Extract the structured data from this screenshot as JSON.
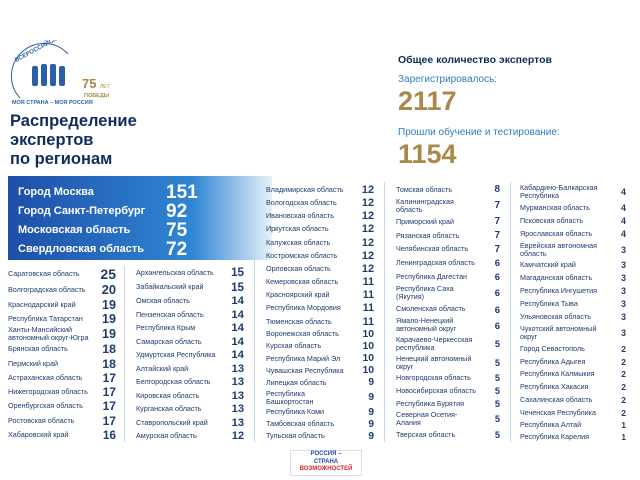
{
  "logo": {
    "arc_top": "ВСЕРОССИЙСКИЙ ПРОЕКТ",
    "arc_bottom": "МОЯ СТРАНА – МОЯ РОССИЯ",
    "years": "75",
    "years_word": "ЛЕТ",
    "victory": "ПОБЕДЫ"
  },
  "title": [
    "Распределение",
    "экспертов",
    "по регионам"
  ],
  "totals": {
    "heading": "Общее количество экспертов",
    "registered_label": "Зарегистрировалось:",
    "registered": "2117",
    "trained_label": "Прошли обучение и тестирование:",
    "trained": "1154"
  },
  "top_regions": [
    {
      "name": "Город Москва",
      "value": "151"
    },
    {
      "name": "Город Санкт-Петербург",
      "value": "92"
    },
    {
      "name": "Московская область",
      "value": "75"
    },
    {
      "name": "Свердловская область",
      "value": "72"
    }
  ],
  "columns": [
    [
      {
        "name": "Саратовская область",
        "value": "25"
      },
      {
        "name": "Волгоградская область",
        "value": "20"
      },
      {
        "name": "Краснодарский край",
        "value": "19"
      },
      {
        "name": "Республика Татарстан",
        "value": "19"
      },
      {
        "name": "Ханты-Мансийский автономный округ-Югра",
        "value": "19"
      },
      {
        "name": "Брянская область",
        "value": "18"
      },
      {
        "name": "Пермский край",
        "value": "18"
      },
      {
        "name": "Астраханская область",
        "value": "17"
      },
      {
        "name": "Нижегородская область",
        "value": "17"
      },
      {
        "name": "Оренбургская область",
        "value": "17"
      },
      {
        "name": "Ростовская область",
        "value": "17"
      },
      {
        "name": "Хабаровский край",
        "value": "16"
      }
    ],
    [
      {
        "name": "Архангельская область",
        "value": "15"
      },
      {
        "name": "Забайкальский край",
        "value": "15"
      },
      {
        "name": "Омская область",
        "value": "14"
      },
      {
        "name": "Пензенская область",
        "value": "14"
      },
      {
        "name": "Республика Крым",
        "value": "14"
      },
      {
        "name": "Самарская область",
        "value": "14"
      },
      {
        "name": "Удмуртская Республика",
        "value": "14"
      },
      {
        "name": "Алтайский край",
        "value": "13"
      },
      {
        "name": "Белгородская область",
        "value": "13"
      },
      {
        "name": "Кировская область",
        "value": "13"
      },
      {
        "name": "Курганская область",
        "value": "13"
      },
      {
        "name": "Ставропольский край",
        "value": "13"
      },
      {
        "name": "Амурская область",
        "value": "12"
      }
    ],
    [
      {
        "name": "Владимирская область",
        "value": "12"
      },
      {
        "name": "Вологодская область",
        "value": "12"
      },
      {
        "name": "Ивановская область",
        "value": "12"
      },
      {
        "name": "Иркутская область",
        "value": "12"
      },
      {
        "name": "Калужская область",
        "value": "12"
      },
      {
        "name": "Костромская область",
        "value": "12"
      },
      {
        "name": "Орловская область",
        "value": "12"
      },
      {
        "name": "Кемеровская область",
        "value": "11"
      },
      {
        "name": "Красноярский край",
        "value": "11"
      },
      {
        "name": "Республика Мордовия",
        "value": "11"
      },
      {
        "name": "Тюменская область",
        "value": "11"
      },
      {
        "name": "Воронежская область",
        "value": "10"
      },
      {
        "name": "Курская область",
        "value": "10"
      },
      {
        "name": "Республика Марий Эл",
        "value": "10"
      },
      {
        "name": "Чувашская Республика",
        "value": "10"
      },
      {
        "name": "Липецкая область",
        "value": "9"
      },
      {
        "name": "Республика Башкортостан",
        "value": "9"
      },
      {
        "name": "Республика Коми",
        "value": "9"
      },
      {
        "name": "Тамбовская область",
        "value": "9"
      },
      {
        "name": "Тульская область",
        "value": "9"
      }
    ],
    [
      {
        "name": "Томская область",
        "value": "8"
      },
      {
        "name": "Калининградская область",
        "value": "7"
      },
      {
        "name": "Приморский край",
        "value": "7"
      },
      {
        "name": "Рязанская область",
        "value": "7"
      },
      {
        "name": "Челябинская область",
        "value": "7"
      },
      {
        "name": "Ленинградская область",
        "value": "6"
      },
      {
        "name": "Республика Дагестан",
        "value": "6"
      },
      {
        "name": "Республика Саха (Якутия)",
        "value": "6"
      },
      {
        "name": "Смоленская область",
        "value": "6"
      },
      {
        "name": "Ямало-Ненецкий автономный округ",
        "value": "6"
      },
      {
        "name": "Карачаево-Черкесская республика",
        "value": "5"
      },
      {
        "name": "Ненецкий автономный округ",
        "value": "5"
      },
      {
        "name": "Новгородская область",
        "value": "5"
      },
      {
        "name": "Новосибирская область",
        "value": "5"
      },
      {
        "name": "Республика Бурятия",
        "value": "5"
      },
      {
        "name": "Северная Осетия-Алания",
        "value": "5"
      },
      {
        "name": "Тверская область",
        "value": "5"
      }
    ],
    [
      {
        "name": "Кабардино-Балкарская Республика",
        "value": "4"
      },
      {
        "name": "Мурманская область",
        "value": "4"
      },
      {
        "name": "Псковская область",
        "value": "4"
      },
      {
        "name": "Ярославская область",
        "value": "4"
      },
      {
        "name": "Еврейская автономная область",
        "value": "3"
      },
      {
        "name": "Камчатский край",
        "value": "3"
      },
      {
        "name": "Магаданская область",
        "value": "3"
      },
      {
        "name": "Республика Ингушетия",
        "value": "3"
      },
      {
        "name": "Республика Тыва",
        "value": "3"
      },
      {
        "name": "Ульяновская область",
        "value": "3"
      },
      {
        "name": "Чукотский автономный округ",
        "value": "3"
      },
      {
        "name": "Город Севастополь",
        "value": "2"
      },
      {
        "name": "Республика Адыгея",
        "value": "2"
      },
      {
        "name": "Республика Калмыкия",
        "value": "2"
      },
      {
        "name": "Республика Хакасия",
        "value": "2"
      },
      {
        "name": "Сахалинская область",
        "value": "2"
      },
      {
        "name": "Чеченская Республика",
        "value": "2"
      },
      {
        "name": "Республика Алтай",
        "value": "1"
      },
      {
        "name": "Республика Карелия",
        "value": "1"
      }
    ]
  ],
  "footer_logo": [
    "РОССИЯ –",
    "СТРАНА",
    "ВОЗМОЖНОСТЕЙ"
  ]
}
